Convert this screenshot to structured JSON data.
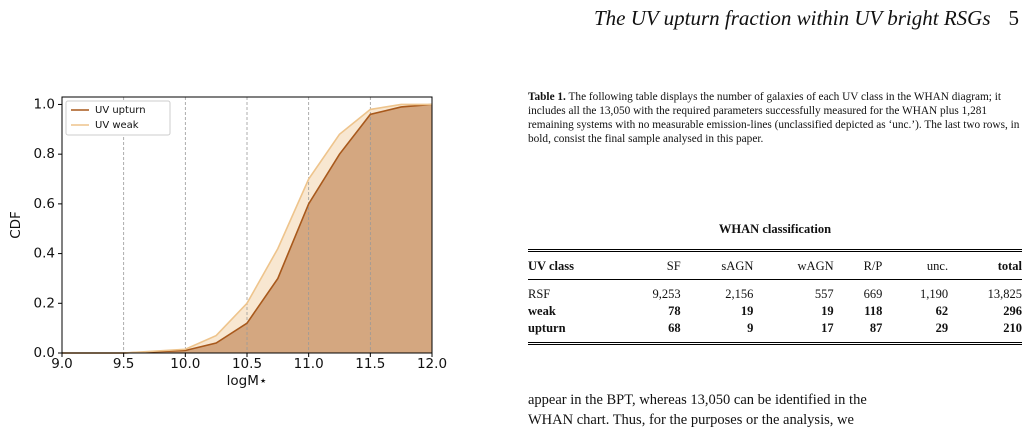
{
  "header": {
    "title": "The UV upturn fraction within UV bright RSGs",
    "page": "5"
  },
  "chart_data": {
    "type": "line",
    "xlabel": "logM⋆",
    "ylabel": "CDF",
    "x": [
      9.0,
      9.5,
      10.0,
      10.25,
      10.5,
      10.75,
      11.0,
      11.25,
      11.5,
      11.75,
      12.0
    ],
    "series": [
      {
        "name": "UV upturn",
        "color": "#a8591c",
        "values": [
          0,
          0,
          0.01,
          0.04,
          0.12,
          0.3,
          0.6,
          0.8,
          0.96,
          0.99,
          1.0
        ]
      },
      {
        "name": "UV weak",
        "color": "#eec48c",
        "values": [
          0,
          0,
          0.015,
          0.07,
          0.2,
          0.42,
          0.7,
          0.88,
          0.98,
          1.0,
          1.0
        ]
      }
    ],
    "xlim": [
      9,
      12
    ],
    "ylim": [
      0,
      1.03
    ],
    "xticks": [
      {
        "value": 9,
        "label": "9.0"
      },
      9.5,
      {
        "value": 10,
        "label": "10.0"
      },
      10.5,
      {
        "value": 11,
        "label": "11.0"
      },
      11.5,
      {
        "value": 12,
        "label": "12.0"
      }
    ],
    "yticks": [
      {
        "value": 0,
        "label": "0.0"
      },
      0.2,
      0.4,
      0.6,
      0.8,
      {
        "value": 1,
        "label": "1.0"
      }
    ],
    "grid": "x",
    "legend": "upper left"
  },
  "table": {
    "label": "Table 1.",
    "caption": "The following table displays the number of galaxies of each UV class in the WHAN diagram; it includes all the 13,050 with the required parameters successfully measured for the WHAN plus 1,281 remaining systems with no measurable emission-lines (unclassified depicted as ‘unc.’). The last two rows, in bold, consist the final sample analysed in this paper.",
    "heading": "WHAN classification",
    "columns": [
      "UV class",
      "SF",
      "sAGN",
      "wAGN",
      "R/P",
      "unc.",
      "total"
    ],
    "rows": [
      [
        "RSF",
        "9,253",
        "2,156",
        "557",
        "669",
        "1,190",
        "13,825"
      ],
      [
        "weak",
        "78",
        "19",
        "19",
        "118",
        "62",
        "296"
      ],
      [
        "upturn",
        "68",
        "9",
        "17",
        "87",
        "29",
        "210"
      ]
    ]
  },
  "body": [
    "appear in the BPT, whereas 13,050 can be identified in the",
    "WHAN chart. Thus, for the purposes or the analysis, we"
  ]
}
